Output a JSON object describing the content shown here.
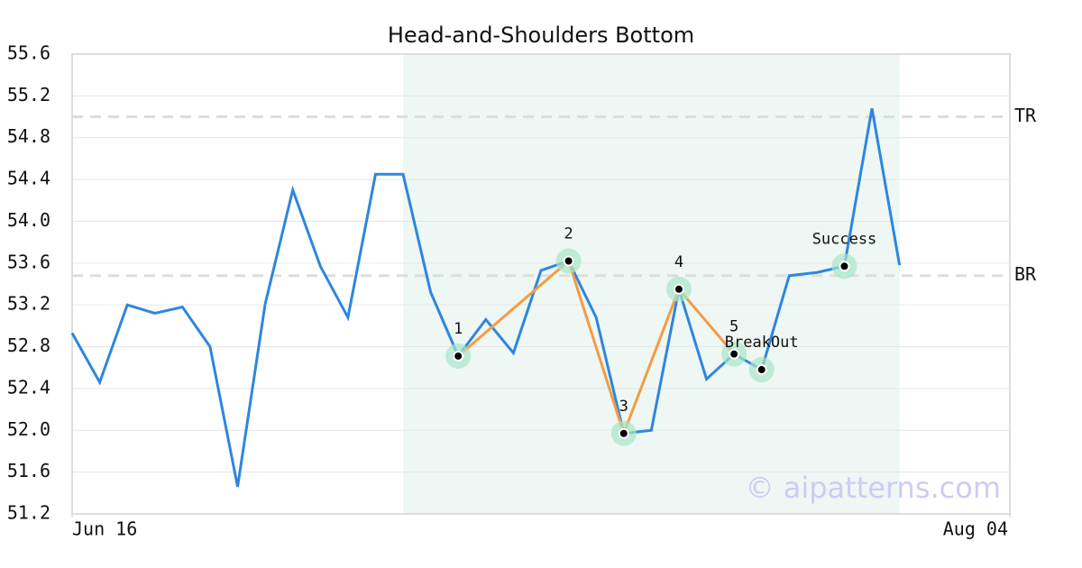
{
  "chart_data": {
    "type": "line",
    "title": "Head-and-Shoulders Bottom",
    "x": [
      0,
      1,
      2,
      3,
      4,
      5,
      6,
      7,
      8,
      9,
      10,
      11,
      12,
      13,
      14,
      15,
      16,
      17,
      18,
      19,
      20,
      21,
      22,
      23,
      24,
      25,
      26,
      27,
      28,
      29,
      30
    ],
    "series": [
      {
        "color": "#2e86de",
        "values": [
          52.93,
          52.46,
          53.2,
          53.12,
          53.18,
          52.8,
          51.46,
          53.21,
          54.3,
          53.57,
          53.08,
          54.45,
          54.45,
          53.32,
          52.71,
          53.06,
          52.74,
          53.53,
          53.62,
          53.08,
          51.97,
          52.0,
          53.35,
          52.49,
          52.73,
          52.58,
          53.48,
          53.51,
          53.57,
          55.08,
          53.58
        ]
      }
    ],
    "pattern_color": "#f39c44",
    "pattern_points": [
      {
        "label": "1",
        "x": 14,
        "y": 52.71
      },
      {
        "label": "2",
        "x": 18,
        "y": 53.62
      },
      {
        "label": "3",
        "x": 20,
        "y": 51.97
      },
      {
        "label": "4",
        "x": 22,
        "y": 53.35
      },
      {
        "label": "5",
        "x": 24,
        "y": 52.73
      }
    ],
    "event_points": [
      {
        "label": "BreakOut",
        "x": 25,
        "y": 52.58
      },
      {
        "label": "Success",
        "x": 28,
        "y": 53.57
      }
    ],
    "levels": [
      {
        "label": "TR",
        "value": 55.0
      },
      {
        "label": "BR",
        "value": 53.48
      }
    ],
    "shaded_range": [
      12,
      30
    ],
    "xlim": [
      0,
      34
    ],
    "xticks": [
      {
        "value": 0,
        "label": "Jun 16"
      },
      {
        "value": 34,
        "label": "Aug 04"
      }
    ],
    "ylim": [
      51.2,
      55.6
    ],
    "yticks": [
      51.2,
      51.6,
      {
        "value": 52.0,
        "label": "52.0"
      },
      52.4,
      52.8,
      53.2,
      53.6,
      {
        "value": 54.0,
        "label": "54.0"
      },
      54.4,
      54.8,
      55.2,
      55.6
    ],
    "grid": true,
    "watermark": "© aipatterns.com"
  }
}
